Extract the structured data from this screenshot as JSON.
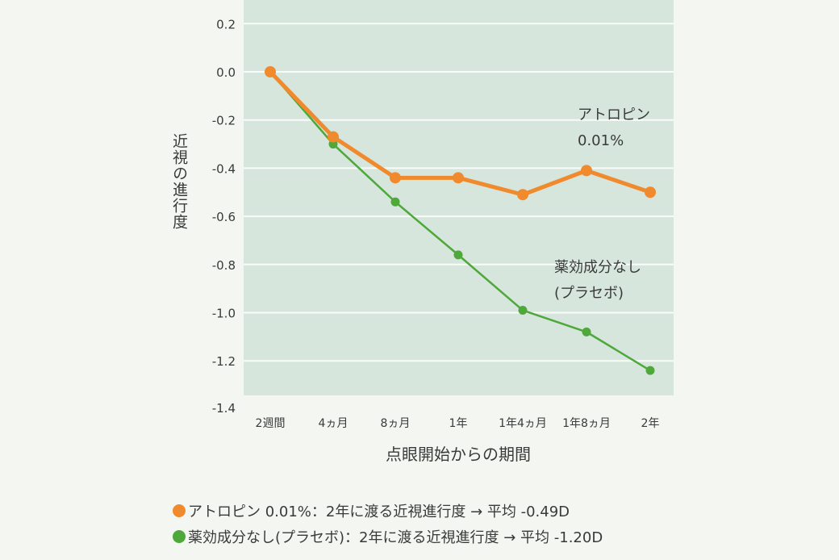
{
  "chart_data": {
    "type": "line",
    "title": "",
    "xlabel": "点眼開始からの期間",
    "ylabel": "近視の進行度",
    "categories": [
      "2週間",
      "4ヵ月",
      "8ヵ月",
      "1年",
      "1年4ヵ月",
      "1年8ヵ月",
      "2年"
    ],
    "yticks": [
      "0.2",
      "0.0",
      "-0.2",
      "-0.4",
      "-0.6",
      "-0.8",
      "-1.0",
      "-1.2",
      "-1.4"
    ],
    "ylim": [
      -1.4,
      0.3
    ],
    "grid": true,
    "series": [
      {
        "name": "アトロピン 0.01%",
        "label_lines": [
          "アトロピン",
          "0.01%"
        ],
        "color": "#f08a2c",
        "values": [
          0.0,
          -0.27,
          -0.44,
          -0.44,
          -0.51,
          -0.41,
          -0.5
        ]
      },
      {
        "name": "薬効成分なし(プラセボ)",
        "label_lines": [
          "薬効成分なし",
          "(プラセボ)"
        ],
        "color": "#4ea83a",
        "values": [
          0.0,
          -0.3,
          -0.54,
          -0.76,
          -0.99,
          -1.08,
          -1.24
        ]
      }
    ],
    "legend": {
      "placement": "bottom",
      "items": [
        {
          "text": "アトロピン 0.01%：2年に渡る近視進行度 → 平均 -0.49D",
          "color": "#f08a2c"
        },
        {
          "text": "薬効成分なし(プラセボ)：2年に渡る近視進行度 → 平均 -1.20D",
          "color": "#4ea83a"
        }
      ]
    },
    "plot_background": "#d6e6dd"
  }
}
